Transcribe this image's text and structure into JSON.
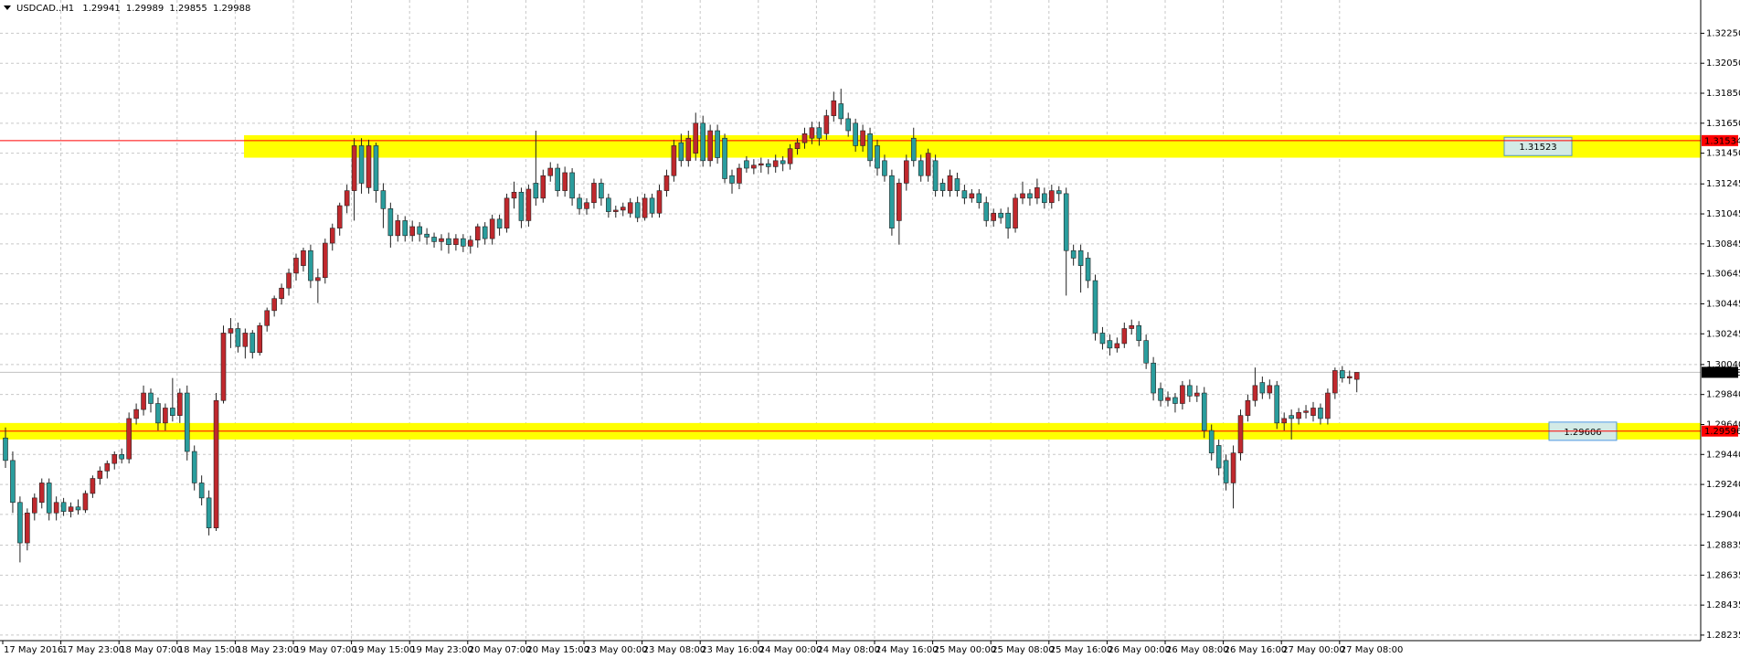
{
  "chart_data": {
    "type": "candlestick",
    "symbol": "USDCAD..H1",
    "up_color": "#c0282d",
    "down_color": "#2a9d9d",
    "grid": true,
    "candles": [
      [
        1.2955,
        1.2962,
        1.2935,
        1.294
      ],
      [
        1.294,
        1.2946,
        1.2905,
        1.2912
      ],
      [
        1.2912,
        1.2916,
        1.2872,
        1.2885
      ],
      [
        1.2885,
        1.2908,
        1.288,
        1.2905
      ],
      [
        1.2905,
        1.2918,
        1.29,
        1.2915
      ],
      [
        1.2912,
        1.2928,
        1.2908,
        1.2925
      ],
      [
        1.2925,
        1.2928,
        1.29,
        1.2905
      ],
      [
        1.2905,
        1.2916,
        1.29,
        1.2912
      ],
      [
        1.2912,
        1.2915,
        1.2903,
        1.2906
      ],
      [
        1.2906,
        1.2912,
        1.2902,
        1.2909
      ],
      [
        1.2909,
        1.2914,
        1.2904,
        1.2907
      ],
      [
        1.2907,
        1.292,
        1.2905,
        1.2918
      ],
      [
        1.2918,
        1.293,
        1.2915,
        1.2928
      ],
      [
        1.2928,
        1.2936,
        1.2924,
        1.2933
      ],
      [
        1.2933,
        1.294,
        1.2928,
        1.2938
      ],
      [
        1.2938,
        1.2946,
        1.2934,
        1.2944
      ],
      [
        1.2944,
        1.2948,
        1.2938,
        1.2941
      ],
      [
        1.2941,
        1.2972,
        1.2938,
        1.2968
      ],
      [
        1.2968,
        1.2978,
        1.2964,
        1.2974
      ],
      [
        1.2974,
        1.299,
        1.297,
        1.2985
      ],
      [
        1.2985,
        1.2988,
        1.2972,
        1.2978
      ],
      [
        1.2978,
        1.2982,
        1.296,
        1.2965
      ],
      [
        1.2965,
        1.2978,
        1.296,
        1.2975
      ],
      [
        1.2975,
        1.2995,
        1.2966,
        1.297
      ],
      [
        1.297,
        1.2988,
        1.2965,
        1.2985
      ],
      [
        1.2985,
        1.299,
        1.294,
        1.2946
      ],
      [
        1.2946,
        1.295,
        1.292,
        1.2925
      ],
      [
        1.2925,
        1.293,
        1.291,
        1.2915
      ],
      [
        1.2915,
        1.292,
        1.289,
        1.2895
      ],
      [
        1.2895,
        1.2985,
        1.2893,
        1.298
      ],
      [
        1.298,
        1.303,
        1.2978,
        1.3025
      ],
      [
        1.3025,
        1.3035,
        1.3015,
        1.3028
      ],
      [
        1.3028,
        1.3032,
        1.3012,
        1.3016
      ],
      [
        1.3016,
        1.3028,
        1.3008,
        1.3025
      ],
      [
        1.3025,
        1.3027,
        1.3008,
        1.3012
      ],
      [
        1.3012,
        1.3032,
        1.301,
        1.303
      ],
      [
        1.303,
        1.3042,
        1.3026,
        1.304
      ],
      [
        1.304,
        1.305,
        1.3036,
        1.3048
      ],
      [
        1.3048,
        1.3058,
        1.3044,
        1.3055
      ],
      [
        1.3055,
        1.3068,
        1.305,
        1.3065
      ],
      [
        1.3065,
        1.3078,
        1.306,
        1.3075
      ],
      [
        1.307,
        1.3082,
        1.3066,
        1.308
      ],
      [
        1.308,
        1.3084,
        1.3055,
        1.306
      ],
      [
        1.306,
        1.3068,
        1.3045,
        1.3062
      ],
      [
        1.3062,
        1.3088,
        1.3058,
        1.3085
      ],
      [
        1.3085,
        1.3098,
        1.308,
        1.3095
      ],
      [
        1.3095,
        1.3112,
        1.309,
        1.311
      ],
      [
        1.311,
        1.3124,
        1.3105,
        1.312
      ],
      [
        1.312,
        1.3155,
        1.31,
        1.315
      ],
      [
        1.315,
        1.3155,
        1.3118,
        1.3125
      ],
      [
        1.3122,
        1.3154,
        1.3118,
        1.315
      ],
      [
        1.315,
        1.3152,
        1.3112,
        1.312
      ],
      [
        1.312,
        1.3125,
        1.3095,
        1.3108
      ],
      [
        1.3108,
        1.3112,
        1.3082,
        1.309
      ],
      [
        1.309,
        1.3104,
        1.3086,
        1.31
      ],
      [
        1.31,
        1.3103,
        1.3086,
        1.309
      ],
      [
        1.309,
        1.31,
        1.3086,
        1.3096
      ],
      [
        1.3096,
        1.3099,
        1.3086,
        1.3091
      ],
      [
        1.3091,
        1.3095,
        1.3084,
        1.3089
      ],
      [
        1.3089,
        1.3092,
        1.3082,
        1.3086
      ],
      [
        1.3086,
        1.3091,
        1.308,
        1.3088
      ],
      [
        1.3088,
        1.3092,
        1.3078,
        1.3084
      ],
      [
        1.3084,
        1.3091,
        1.308,
        1.3088
      ],
      [
        1.3088,
        1.3091,
        1.3079,
        1.3083
      ],
      [
        1.3083,
        1.309,
        1.3078,
        1.3087
      ],
      [
        1.3087,
        1.3098,
        1.3082,
        1.3096
      ],
      [
        1.3096,
        1.3099,
        1.3084,
        1.3088
      ],
      [
        1.3088,
        1.3104,
        1.3084,
        1.3101
      ],
      [
        1.3101,
        1.3104,
        1.309,
        1.3095
      ],
      [
        1.3095,
        1.3118,
        1.3092,
        1.3115
      ],
      [
        1.3115,
        1.3126,
        1.3108,
        1.3119
      ],
      [
        1.3119,
        1.3122,
        1.3095,
        1.31
      ],
      [
        1.31,
        1.3124,
        1.3096,
        1.3121
      ],
      [
        1.3125,
        1.316,
        1.311,
        1.3115
      ],
      [
        1.3115,
        1.3134,
        1.3112,
        1.313
      ],
      [
        1.313,
        1.3139,
        1.3126,
        1.3135
      ],
      [
        1.3135,
        1.3138,
        1.3116,
        1.312
      ],
      [
        1.312,
        1.3136,
        1.3116,
        1.3132
      ],
      [
        1.3132,
        1.3135,
        1.311,
        1.3115
      ],
      [
        1.3115,
        1.3118,
        1.3104,
        1.3108
      ],
      [
        1.3108,
        1.3115,
        1.3104,
        1.3112
      ],
      [
        1.3112,
        1.3128,
        1.3108,
        1.3125
      ],
      [
        1.3125,
        1.3128,
        1.311,
        1.3115
      ],
      [
        1.3115,
        1.3118,
        1.3102,
        1.3106
      ],
      [
        1.3106,
        1.311,
        1.3102,
        1.3107
      ],
      [
        1.3107,
        1.3112,
        1.3103,
        1.3109
      ],
      [
        1.3105,
        1.3115,
        1.3102,
        1.3112
      ],
      [
        1.3112,
        1.3116,
        1.3099,
        1.3102
      ],
      [
        1.3102,
        1.3118,
        1.31,
        1.3115
      ],
      [
        1.3115,
        1.3118,
        1.3102,
        1.3105
      ],
      [
        1.3105,
        1.3124,
        1.3102,
        1.312
      ],
      [
        1.312,
        1.3134,
        1.3116,
        1.313
      ],
      [
        1.313,
        1.3154,
        1.3126,
        1.315
      ],
      [
        1.3152,
        1.3158,
        1.3136,
        1.314
      ],
      [
        1.314,
        1.316,
        1.3136,
        1.3155
      ],
      [
        1.3145,
        1.3172,
        1.314,
        1.3165
      ],
      [
        1.3165,
        1.317,
        1.3136,
        1.314
      ],
      [
        1.314,
        1.3164,
        1.3136,
        1.316
      ],
      [
        1.316,
        1.3164,
        1.3138,
        1.3142
      ],
      [
        1.3155,
        1.3158,
        1.3125,
        1.3128
      ],
      [
        1.313,
        1.3134,
        1.3118,
        1.3125
      ],
      [
        1.3125,
        1.3138,
        1.3121,
        1.3135
      ],
      [
        1.314,
        1.3143,
        1.3132,
        1.3135
      ],
      [
        1.3135,
        1.3141,
        1.3131,
        1.3137
      ],
      [
        1.3137,
        1.3142,
        1.3132,
        1.3138
      ],
      [
        1.3138,
        1.3141,
        1.3131,
        1.3136
      ],
      [
        1.3136,
        1.3144,
        1.3132,
        1.314
      ],
      [
        1.314,
        1.3143,
        1.3133,
        1.3138
      ],
      [
        1.3138,
        1.3151,
        1.3134,
        1.3148
      ],
      [
        1.3148,
        1.3155,
        1.3144,
        1.3152
      ],
      [
        1.3152,
        1.3162,
        1.3148,
        1.3158
      ],
      [
        1.3155,
        1.3166,
        1.3151,
        1.3162
      ],
      [
        1.3162,
        1.3166,
        1.315,
        1.3155
      ],
      [
        1.3158,
        1.3174,
        1.3154,
        1.317
      ],
      [
        1.317,
        1.3186,
        1.3166,
        1.318
      ],
      [
        1.3178,
        1.3188,
        1.3164,
        1.3168
      ],
      [
        1.3168,
        1.3172,
        1.3156,
        1.316
      ],
      [
        1.3165,
        1.3168,
        1.3146,
        1.315
      ],
      [
        1.315,
        1.3164,
        1.3146,
        1.316
      ],
      [
        1.3158,
        1.3162,
        1.3136,
        1.314
      ],
      [
        1.315,
        1.3154,
        1.313,
        1.3135
      ],
      [
        1.314,
        1.3144,
        1.3126,
        1.313
      ],
      [
        1.313,
        1.3134,
        1.309,
        1.3095
      ],
      [
        1.31,
        1.3128,
        1.3084,
        1.3125
      ],
      [
        1.3125,
        1.3144,
        1.312,
        1.314
      ],
      [
        1.3155,
        1.3162,
        1.3136,
        1.314
      ],
      [
        1.314,
        1.3144,
        1.3126,
        1.313
      ],
      [
        1.313,
        1.3148,
        1.3126,
        1.3145
      ],
      [
        1.314,
        1.3144,
        1.3116,
        1.312
      ],
      [
        1.3125,
        1.3128,
        1.3116,
        1.312
      ],
      [
        1.312,
        1.3134,
        1.3116,
        1.313
      ],
      [
        1.3128,
        1.3132,
        1.3116,
        1.312
      ],
      [
        1.312,
        1.3124,
        1.3111,
        1.3115
      ],
      [
        1.3115,
        1.3121,
        1.3112,
        1.3118
      ],
      [
        1.3118,
        1.3121,
        1.3108,
        1.3112
      ],
      [
        1.3112,
        1.3116,
        1.3096,
        1.31
      ],
      [
        1.31,
        1.3108,
        1.3096,
        1.3105
      ],
      [
        1.3105,
        1.3108,
        1.3098,
        1.3102
      ],
      [
        1.3105,
        1.3109,
        1.3088,
        1.3095
      ],
      [
        1.3095,
        1.3118,
        1.3092,
        1.3115
      ],
      [
        1.3115,
        1.3126,
        1.3111,
        1.3118
      ],
      [
        1.3118,
        1.3121,
        1.311,
        1.3115
      ],
      [
        1.3115,
        1.3128,
        1.3111,
        1.3122
      ],
      [
        1.3118,
        1.3122,
        1.3108,
        1.3112
      ],
      [
        1.3112,
        1.3124,
        1.3108,
        1.312
      ],
      [
        1.312,
        1.3123,
        1.3113,
        1.3118
      ],
      [
        1.3118,
        1.3122,
        1.305,
        1.308
      ],
      [
        1.308,
        1.3084,
        1.307,
        1.3075
      ],
      [
        1.308,
        1.3084,
        1.3052,
        1.307
      ],
      [
        1.3075,
        1.3079,
        1.3055,
        1.306
      ],
      [
        1.306,
        1.3064,
        1.302,
        1.3025
      ],
      [
        1.3025,
        1.3029,
        1.3014,
        1.3018
      ],
      [
        1.302,
        1.3024,
        1.301,
        1.3015
      ],
      [
        1.3015,
        1.3022,
        1.3012,
        1.3018
      ],
      [
        1.3018,
        1.3032,
        1.3015,
        1.3028
      ],
      [
        1.3028,
        1.3034,
        1.3024,
        1.303
      ],
      [
        1.303,
        1.3033,
        1.3016,
        1.302
      ],
      [
        1.302,
        1.3024,
        1.3001,
        1.3005
      ],
      [
        1.3005,
        1.3009,
        1.298,
        1.2985
      ],
      [
        1.2988,
        1.2992,
        1.2976,
        1.298
      ],
      [
        1.298,
        1.2986,
        1.2976,
        1.2982
      ],
      [
        1.2982,
        1.2985,
        1.2972,
        1.2978
      ],
      [
        1.2978,
        1.2993,
        1.2974,
        1.299
      ],
      [
        1.299,
        1.2994,
        1.2979,
        1.2983
      ],
      [
        1.2983,
        1.299,
        1.2979,
        1.2985
      ],
      [
        1.2985,
        1.2989,
        1.2955,
        1.296
      ],
      [
        1.296,
        1.2964,
        1.294,
        1.2945
      ],
      [
        1.295,
        1.2954,
        1.293,
        1.2935
      ],
      [
        1.294,
        1.2944,
        1.292,
        1.2925
      ],
      [
        1.2925,
        1.295,
        1.2908,
        1.2945
      ],
      [
        1.2945,
        1.2974,
        1.294,
        1.297
      ],
      [
        1.297,
        1.2984,
        1.2966,
        1.298
      ],
      [
        1.298,
        1.3002,
        1.2976,
        1.299
      ],
      [
        1.2992,
        1.2996,
        1.2981,
        1.2985
      ],
      [
        1.2985,
        1.2994,
        1.2981,
        1.299
      ],
      [
        1.299,
        1.2993,
        1.2961,
        1.2965
      ],
      [
        1.2965,
        1.2972,
        1.296,
        1.2968
      ],
      [
        1.297,
        1.2974,
        1.2954,
        1.2968
      ],
      [
        1.2968,
        1.2975,
        1.2964,
        1.2972
      ],
      [
        1.2972,
        1.2977,
        1.2968,
        1.2973
      ],
      [
        1.297,
        1.2979,
        1.2966,
        1.2975
      ],
      [
        1.2975,
        1.2978,
        1.2964,
        1.2968
      ],
      [
        1.2968,
        1.2988,
        1.2964,
        1.2985
      ],
      [
        1.2985,
        1.3002,
        1.2981,
        1.3
      ],
      [
        1.3,
        1.3003,
        1.2992,
        1.2995
      ],
      [
        1.2995,
        1.3,
        1.2991,
        1.2996
      ],
      [
        1.29941,
        1.29989,
        1.29855,
        1.29988
      ]
    ],
    "time_labels": [
      "17 May 2016",
      "17 May 23:00",
      "18 May 07:00",
      "18 May 15:00",
      "18 May 23:00",
      "19 May 07:00",
      "19 May 15:00",
      "19 May 23:00",
      "20 May 07:00",
      "20 May 15:00",
      "23 May 00:00",
      "23 May 08:00",
      "23 May 16:00",
      "24 May 00:00",
      "24 May 08:00",
      "24 May 16:00",
      "25 May 00:00",
      "25 May 08:00",
      "25 May 16:00",
      "26 May 00:00",
      "26 May 08:00",
      "26 May 16:00",
      "27 May 00:00",
      "27 May 08:00"
    ],
    "ylim": [
      1.28198,
      1.32472
    ],
    "yticks": [
      {
        "value": 1.3225,
        "label": "1.32250"
      },
      {
        "value": 1.3205,
        "label": "1.32050"
      },
      {
        "value": 1.3185,
        "label": "1.31850"
      },
      {
        "value": 1.3165,
        "label": "1.31650"
      },
      {
        "value": 1.3145,
        "label": "1.31450"
      },
      1.31245,
      1.31045,
      1.30845,
      1.30645,
      1.30445,
      1.30245,
      {
        "value": 1.3004,
        "label": "1.30040"
      },
      {
        "value": 1.2984,
        "label": "1.29840"
      },
      {
        "value": 1.2964,
        "label": "1.29640"
      },
      {
        "value": 1.2944,
        "label": "1.29440"
      },
      {
        "value": 1.2924,
        "label": "1.29240"
      },
      {
        "value": 1.2904,
        "label": "1.29040"
      },
      1.28835,
      1.28635,
      1.28435,
      1.28235
    ],
    "zones": [
      {
        "label": 1.31523,
        "top": 1.3157,
        "bottom": 1.3142,
        "color": "#ffff00"
      },
      {
        "label": 1.29606,
        "top": 1.2965,
        "bottom": 1.2954,
        "color": "#ffff00"
      }
    ],
    "hlines": [
      {
        "value": 1.31534,
        "color": "#ff0000"
      },
      {
        "value": 1.29596,
        "color": "#ff0000"
      },
      {
        "value": 1.29988,
        "color": "#c0c0c0"
      }
    ]
  }
}
